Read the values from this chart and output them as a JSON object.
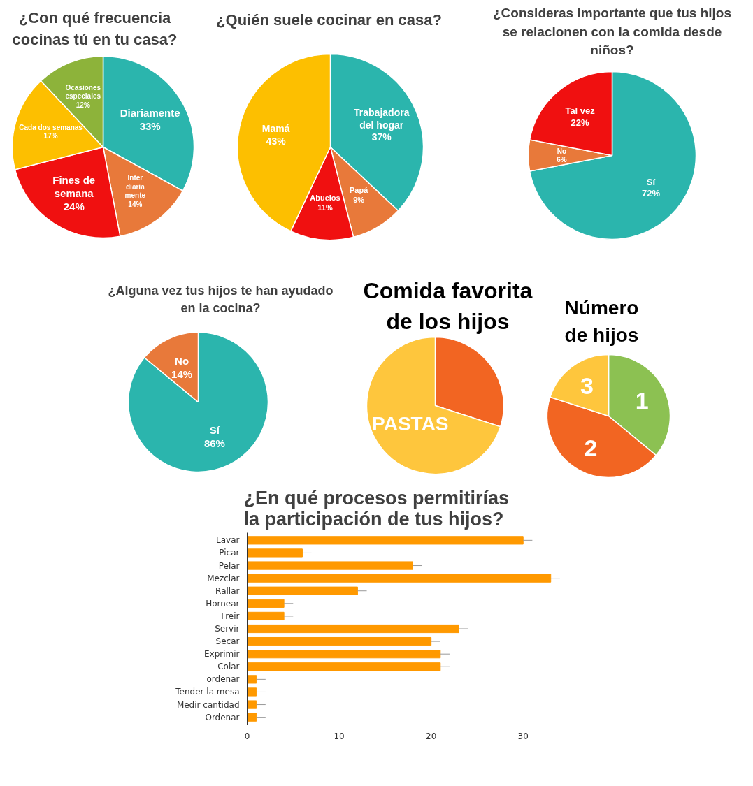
{
  "chart_data": [
    {
      "type": "pie",
      "title": "¿Con qué frecuencia cocinas tú en tu casa?",
      "categories": [
        "Diariamente",
        "Inter\ndiaria\nmente",
        "Fines de\nsemana",
        "Cada dos semanas",
        "Ocasiones\nespeciales"
      ],
      "values": [
        33,
        14,
        24,
        17,
        12
      ],
      "value_labels": [
        "33%",
        "14%",
        "24%",
        "17%",
        "12%"
      ],
      "colors": [
        "#2bb5ad",
        "#e8793a",
        "#f01010",
        "#fdbf00",
        "#8db33a"
      ]
    },
    {
      "type": "pie",
      "title": "¿Quién suele cocinar en casa?",
      "categories": [
        "Trabajadora\ndel hogar",
        "Papá",
        "Abuelos",
        "Mamá"
      ],
      "values": [
        37,
        9,
        11,
        43
      ],
      "value_labels": [
        "37%",
        "9%",
        "11%",
        "43%"
      ],
      "colors": [
        "#2bb5ad",
        "#e8793a",
        "#f01010",
        "#fdbf00"
      ]
    },
    {
      "type": "pie",
      "title": "¿Consideras importante que tus hijos se relacionen con la comida desde niños?",
      "categories": [
        "Sí",
        "No",
        "Tal vez"
      ],
      "values": [
        72,
        6,
        22
      ],
      "value_labels": [
        "72%",
        "6%",
        "22%"
      ],
      "colors": [
        "#2bb5ad",
        "#e8793a",
        "#f01010"
      ]
    },
    {
      "type": "pie",
      "title": "¿Alguna vez tus hijos te han ayudado en la cocina?",
      "categories": [
        "Sí",
        "No"
      ],
      "values": [
        86,
        14
      ],
      "value_labels": [
        "86%",
        "14%"
      ],
      "colors": [
        "#2bb5ad",
        "#e8793a"
      ]
    },
    {
      "type": "pie",
      "title": "Comida favorita de los hijos",
      "categories": [
        null,
        "PASTAS"
      ],
      "values": [
        30,
        70
      ],
      "colors": [
        "#f26522",
        "#fec63d"
      ]
    },
    {
      "type": "pie",
      "title": "Número de hijos",
      "categories": [
        "1",
        "2",
        "3"
      ],
      "values": [
        36,
        44,
        20
      ],
      "colors": [
        "#8cc152",
        "#f26522",
        "#fec63d"
      ]
    },
    {
      "type": "bar",
      "orientation": "horizontal",
      "title": "¿En qué procesos permitirías la participación de tus hijos?",
      "categories": [
        "Lavar",
        "Picar",
        "Pelar",
        "Mezclar",
        "Rallar",
        "Hornear",
        "Freir",
        "Servir",
        "Secar",
        "Exprimir",
        "Colar",
        "ordenar",
        "Tender la mesa",
        "Medir cantidad",
        "Ordenar"
      ],
      "values": [
        30,
        6,
        18,
        33,
        12,
        4,
        4,
        23,
        20,
        21,
        21,
        1,
        1,
        1,
        1
      ],
      "errors": [
        [
          30,
          31
        ],
        [
          6,
          7
        ],
        [
          18,
          19
        ],
        [
          33,
          34
        ],
        [
          12,
          13
        ],
        [
          4,
          5
        ],
        [
          4,
          5
        ],
        [
          23,
          24
        ],
        [
          20,
          21
        ],
        [
          21,
          22
        ],
        [
          21,
          22
        ],
        [
          1,
          2
        ],
        [
          1,
          2
        ],
        [
          1,
          2
        ],
        [
          1,
          2
        ]
      ],
      "color": "#ff9900",
      "xlim": [
        0,
        38
      ],
      "xticks": [
        0,
        10,
        20,
        30
      ]
    }
  ]
}
